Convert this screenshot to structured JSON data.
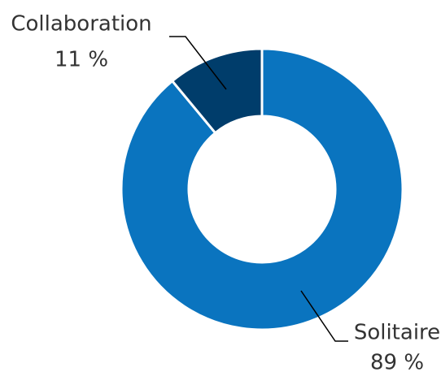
{
  "chart_data": {
    "type": "donut",
    "categories": [
      "Solitaire",
      "Collaboration"
    ],
    "values": [
      89,
      11
    ],
    "value_labels": [
      "89 %",
      "11 %"
    ],
    "colors": [
      "#0a74bf",
      "#003d6b"
    ]
  }
}
